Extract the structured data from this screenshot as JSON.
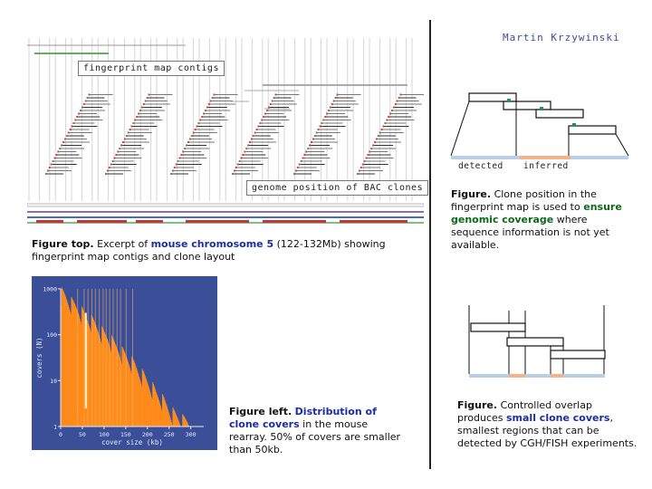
{
  "author": "Martin Krzywinski",
  "top_figure": {
    "label_contigs": "fingerprint map contigs",
    "label_clones": "genome position of BAC clones",
    "caption_lead": "Figure top.",
    "caption_pre": "Excerpt of",
    "caption_kw": "mouse chromosome 5",
    "caption_post": "(122-132Mb) showing fingerprint map contigs and clone layout"
  },
  "right_top": {
    "label_detected": "detected",
    "label_inferred": "inferred",
    "caption_lead": "Figure.",
    "caption_pre": "Clone position in the fingerprint map is used to",
    "caption_kw": "ensure genomic coverage",
    "caption_post": "where sequence information is not yet available."
  },
  "left_figure": {
    "caption_lead": "Figure left.",
    "caption_kw": "Distribution of clone covers",
    "caption_post": "in the mouse rearray. 50% of covers are smaller than 50kb."
  },
  "right_bottom": {
    "caption_lead": "Figure.",
    "caption_pre": "Controlled overlap produces",
    "caption_kw": "small clone covers",
    "caption_post": ", smallest regions that can be detected by CGH/FISH experiments."
  },
  "chart_data": {
    "type": "bar",
    "ylabel": "covers (N)",
    "xlabel": "cover size (kb)",
    "x_ticks": [
      "0",
      "50",
      "100",
      "150",
      "200",
      "250",
      "300"
    ],
    "y_ticks": [
      "1000",
      "100",
      "10",
      "1"
    ],
    "y_scale": "log",
    "xlim": [
      0,
      330
    ],
    "ylim": [
      1,
      1000
    ],
    "series_color": "#ff8c1a",
    "background_color": "#3b4f99",
    "profile": [
      [
        0,
        800
      ],
      [
        10,
        650
      ],
      [
        20,
        500
      ],
      [
        30,
        420
      ],
      [
        40,
        360
      ],
      [
        50,
        280
      ],
      [
        60,
        220
      ],
      [
        70,
        190
      ],
      [
        80,
        150
      ],
      [
        90,
        120
      ],
      [
        100,
        95
      ],
      [
        110,
        80
      ],
      [
        120,
        62
      ],
      [
        130,
        50
      ],
      [
        140,
        40
      ],
      [
        150,
        32
      ],
      [
        160,
        25
      ],
      [
        170,
        20
      ],
      [
        180,
        15
      ],
      [
        190,
        12
      ],
      [
        200,
        9
      ],
      [
        210,
        7
      ],
      [
        220,
        5
      ],
      [
        230,
        4
      ],
      [
        240,
        3
      ],
      [
        250,
        2.2
      ],
      [
        260,
        1.8
      ],
      [
        270,
        1.5
      ],
      [
        280,
        1.3
      ],
      [
        290,
        1.2
      ],
      [
        300,
        1.1
      ]
    ]
  }
}
